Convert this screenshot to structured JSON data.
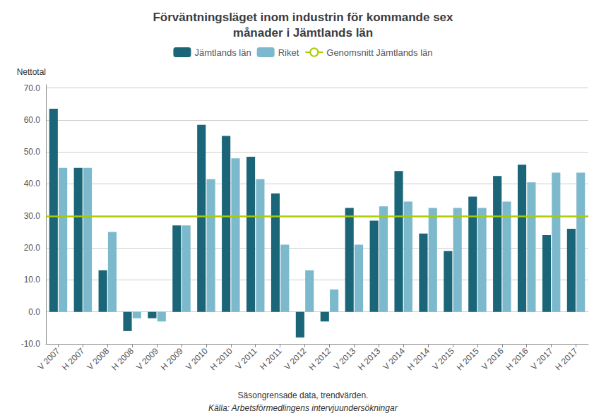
{
  "chart_data": {
    "type": "bar",
    "title": "Förväntningsläget inom industrin för kommande sex\nmånader i Jämtlands län",
    "ylabel": "Nettotal",
    "notes": [
      "Säsongrensade data, trendvärden.",
      "Källa: Arbetsförmedlingens intervjuundersökningar"
    ],
    "categories": [
      "V 2007",
      "H 2007",
      "V 2008",
      "H 2008",
      "V 2009",
      "H 2009",
      "V 2010",
      "H 2010",
      "V 2011",
      "H 2011",
      "V 2012",
      "H 2012",
      "V 2013",
      "H 2013",
      "V 2014",
      "H 2014",
      "V 2015",
      "H 2015",
      "V 2016",
      "H 2016",
      "V 2017",
      "H 2017"
    ],
    "series": [
      {
        "name": "Jämtlands län",
        "color": "#1a6678",
        "values": [
          63.5,
          45.0,
          13.0,
          -6.0,
          -2.0,
          27.0,
          58.5,
          55.0,
          48.5,
          37.0,
          -8.0,
          -3.0,
          32.5,
          28.5,
          44.0,
          24.5,
          19.0,
          36.0,
          42.5,
          46.0,
          24.0,
          26.0
        ]
      },
      {
        "name": "Riket",
        "color": "#7db9cc",
        "values": [
          45.0,
          45.0,
          25.0,
          -2.0,
          -3.0,
          27.0,
          41.5,
          48.0,
          41.5,
          21.0,
          13.0,
          7.0,
          21.0,
          33.0,
          34.5,
          32.5,
          32.5,
          32.5,
          34.5,
          40.5,
          43.5,
          43.5
        ]
      }
    ],
    "reference_lines": [
      {
        "name": "Genomsnitt Jämtlands län",
        "value": 30.0,
        "color": "#aacc00"
      }
    ],
    "ylim": [
      -10,
      71
    ],
    "yticks": [
      {
        "value": -10,
        "label": "-10.0"
      },
      {
        "value": 0,
        "label": "0.0"
      },
      {
        "value": 10,
        "label": "10.0"
      },
      {
        "value": 20,
        "label": "20.0"
      },
      {
        "value": 30,
        "label": "30.0"
      },
      {
        "value": 40,
        "label": "40.0"
      },
      {
        "value": 50,
        "label": "50.0"
      },
      {
        "value": 60,
        "label": "60.0"
      },
      {
        "value": 70,
        "label": "70.0"
      }
    ],
    "grid": true,
    "legend": "top"
  }
}
